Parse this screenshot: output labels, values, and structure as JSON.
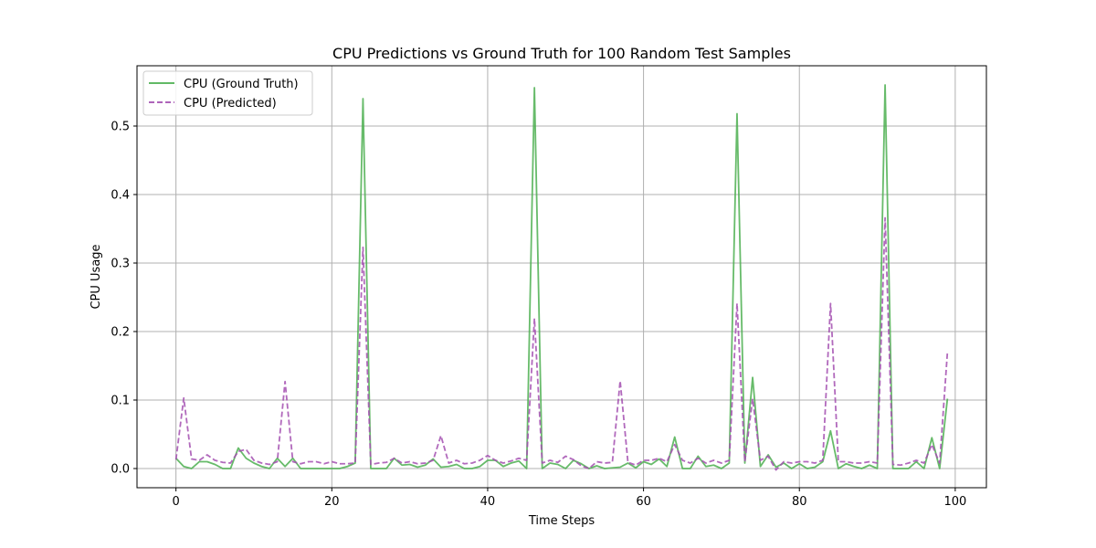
{
  "chart_data": {
    "type": "line",
    "title": "CPU Predictions vs Ground Truth for 100 Random Test Samples",
    "xlabel": "Time Steps",
    "ylabel": "CPU Usage",
    "xlim": [
      -5,
      104
    ],
    "ylim": [
      -0.028,
      0.588
    ],
    "xticks": [
      0,
      20,
      40,
      60,
      80,
      100
    ],
    "yticks": [
      0.0,
      0.1,
      0.2,
      0.3,
      0.4,
      0.5
    ],
    "xtick_labels": [
      "0",
      "20",
      "40",
      "60",
      "80",
      "100"
    ],
    "ytick_labels": [
      "0.0",
      "0.1",
      "0.2",
      "0.3",
      "0.4",
      "0.5"
    ],
    "grid": true,
    "legend_position": "top-left",
    "x": [
      0,
      1,
      2,
      3,
      4,
      5,
      6,
      7,
      8,
      9,
      10,
      11,
      12,
      13,
      14,
      15,
      16,
      17,
      18,
      19,
      20,
      21,
      22,
      23,
      24,
      25,
      26,
      27,
      28,
      29,
      30,
      31,
      32,
      33,
      34,
      35,
      36,
      37,
      38,
      39,
      40,
      41,
      42,
      43,
      44,
      45,
      46,
      47,
      48,
      49,
      50,
      51,
      52,
      53,
      54,
      55,
      56,
      57,
      58,
      59,
      60,
      61,
      62,
      63,
      64,
      65,
      66,
      67,
      68,
      69,
      70,
      71,
      72,
      73,
      74,
      75,
      76,
      77,
      78,
      79,
      80,
      81,
      82,
      83,
      84,
      85,
      86,
      87,
      88,
      89,
      90,
      91,
      92,
      93,
      94,
      95,
      96,
      97,
      98,
      99
    ],
    "series": [
      {
        "name": "CPU (Ground Truth)",
        "color": "#4caf50",
        "style": "solid",
        "values": [
          0.015,
          0.003,
          0.0,
          0.01,
          0.01,
          0.006,
          0.0,
          0.0,
          0.03,
          0.015,
          0.008,
          0.003,
          0.0,
          0.015,
          0.003,
          0.015,
          0.0,
          0.0,
          0.0,
          0.0,
          0.0,
          0.0,
          0.003,
          0.008,
          0.54,
          0.0,
          0.0,
          0.0,
          0.015,
          0.005,
          0.006,
          0.002,
          0.005,
          0.014,
          0.002,
          0.003,
          0.006,
          0.0,
          0.0,
          0.003,
          0.012,
          0.012,
          0.003,
          0.008,
          0.011,
          0.0,
          0.556,
          0.0,
          0.008,
          0.006,
          0.0,
          0.012,
          0.007,
          0.0,
          0.004,
          0.0,
          0.001,
          0.002,
          0.008,
          0.001,
          0.01,
          0.006,
          0.014,
          0.003,
          0.046,
          0.0,
          0.0,
          0.018,
          0.003,
          0.005,
          0.0,
          0.008,
          0.518,
          0.008,
          0.133,
          0.003,
          0.02,
          0.002,
          0.008,
          0.0,
          0.007,
          0.0,
          0.002,
          0.01,
          0.055,
          0.0,
          0.007,
          0.003,
          0.0,
          0.005,
          0.0,
          0.56,
          0.0,
          0.0,
          0.0,
          0.01,
          0.0,
          0.045,
          0.0,
          0.102
        ]
      },
      {
        "name": "CPU (Predicted)",
        "color": "#a34fb0",
        "style": "dashed",
        "values": [
          0.013,
          0.103,
          0.014,
          0.012,
          0.02,
          0.012,
          0.009,
          0.008,
          0.025,
          0.028,
          0.012,
          0.008,
          0.006,
          0.01,
          0.127,
          0.01,
          0.007,
          0.01,
          0.01,
          0.007,
          0.01,
          0.007,
          0.007,
          0.008,
          0.323,
          0.006,
          0.008,
          0.009,
          0.015,
          0.008,
          0.01,
          0.007,
          0.008,
          0.012,
          0.048,
          0.008,
          0.012,
          0.007,
          0.008,
          0.012,
          0.019,
          0.012,
          0.008,
          0.011,
          0.015,
          0.012,
          0.219,
          0.008,
          0.012,
          0.009,
          0.018,
          0.013,
          0.004,
          0.0,
          0.01,
          0.008,
          0.009,
          0.128,
          0.009,
          0.005,
          0.012,
          0.012,
          0.015,
          0.01,
          0.035,
          0.012,
          0.008,
          0.015,
          0.008,
          0.012,
          0.008,
          0.012,
          0.241,
          0.01,
          0.102,
          0.012,
          0.018,
          -0.002,
          0.01,
          0.008,
          0.01,
          0.01,
          0.008,
          0.012,
          0.241,
          0.01,
          0.01,
          0.008,
          0.008,
          0.01,
          0.008,
          0.366,
          0.006,
          0.005,
          0.008,
          0.012,
          0.008,
          0.035,
          0.008,
          0.17
        ]
      }
    ]
  }
}
